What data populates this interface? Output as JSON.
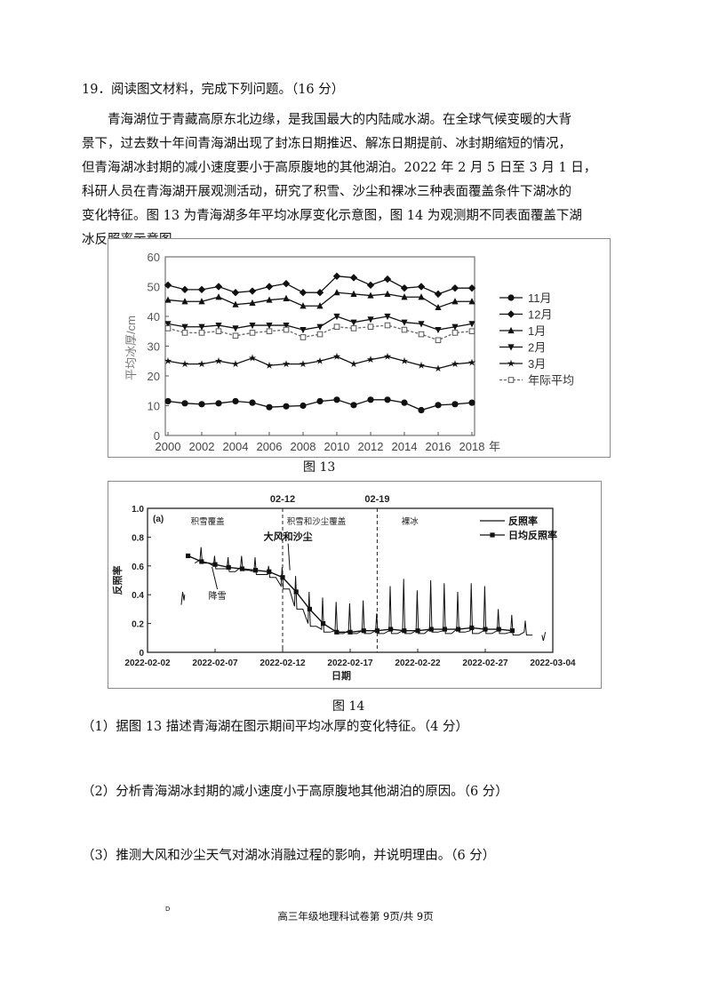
{
  "question": {
    "heading": "19．阅读图文材料，完成下列问题。（16 分）",
    "intro_lines": [
      "青海湖位于青藏高原东北边缘，是我国最大的内陆咸水湖。在全球气候变暖的大背",
      "景下，过去数十年间青海湖出现了封冻日期推迟、解冻日期提前、冰封期缩短的情况，",
      "但青海湖冰封期的减小速度要小于高原腹地的其他湖泊。2022 年 2 月 5 日至 3 月 1 日，",
      "科研人员在青海湖开展观测活动，研究了积雪、沙尘和裸冰三种表面覆盖条件下湖冰的",
      "变化特征。图 13 为青海湖多年平均冰厚变化示意图，图 14 为观测期不同表面覆盖下湖",
      "冰反照率示意图。"
    ],
    "sub_questions": [
      "（1）据图 13 描述青海湖在图示期间平均冰厚的变化特征。（4 分）",
      "（2）分析青海湖冰封期的减小速度小于高原腹地其他湖泊的原因。（6 分）",
      "（3）推测大风和沙尘天气对湖冰消融过程的影响，并说明理由。（6 分）"
    ]
  },
  "figure13": {
    "caption": "图 13"
  },
  "figure14": {
    "caption": "图 14"
  },
  "footer": {
    "text": "高三年级地理科试卷第 9页/共 9页",
    "mark": "D"
  },
  "chart_data": [
    {
      "type": "line",
      "ylabel": "平均冰厚/cm",
      "xlabel": "年",
      "ylim": [
        0,
        60
      ],
      "yticks": [
        "0",
        "10",
        "20",
        "30",
        "40",
        "50",
        "60"
      ],
      "xticks": [
        "2000",
        "2002",
        "2004",
        "2006",
        "2008",
        "2010",
        "2012",
        "2014",
        "2016",
        "2018"
      ],
      "x": [
        2000,
        2001,
        2002,
        2003,
        2004,
        2005,
        2006,
        2007,
        2008,
        2009,
        2010,
        2011,
        2012,
        2013,
        2014,
        2015,
        2016,
        2017,
        2018
      ],
      "legend_position": "right",
      "series": [
        {
          "name": "11月",
          "marker": "circle",
          "style": "solid",
          "values": [
            11.5,
            10.8,
            10.5,
            10.8,
            11.5,
            11.0,
            9.5,
            9.8,
            10.0,
            11.5,
            12.0,
            10.2,
            12.0,
            12.0,
            11.0,
            8.5,
            10.2,
            10.5,
            11.0
          ]
        },
        {
          "name": "12月",
          "marker": "diamond",
          "style": "solid",
          "values": [
            50.5,
            49.0,
            49.0,
            50.0,
            48.0,
            48.5,
            50.0,
            51.0,
            48.0,
            48.0,
            53.5,
            53.0,
            50.5,
            52.5,
            49.5,
            50.0,
            47.5,
            49.5,
            49.5
          ]
        },
        {
          "name": "1月",
          "marker": "triangle-up",
          "style": "solid",
          "values": [
            45.5,
            45.0,
            45.0,
            46.5,
            44.0,
            44.5,
            45.5,
            46.0,
            43.5,
            43.5,
            48.0,
            47.5,
            47.0,
            47.5,
            46.5,
            46.5,
            43.0,
            45.0,
            45.0
          ]
        },
        {
          "name": "2月",
          "marker": "triangle-down",
          "style": "solid",
          "values": [
            37.5,
            36.5,
            36.5,
            37.0,
            36.0,
            37.0,
            37.0,
            37.0,
            35.5,
            36.5,
            40.0,
            38.0,
            39.0,
            40.0,
            38.0,
            37.5,
            35.5,
            36.5,
            37.5
          ]
        },
        {
          "name": "3月",
          "marker": "star",
          "style": "solid",
          "values": [
            25.0,
            24.0,
            24.0,
            25.0,
            24.0,
            26.0,
            23.5,
            24.0,
            24.0,
            25.0,
            26.5,
            24.0,
            25.5,
            26.5,
            25.0,
            23.5,
            22.5,
            24.0,
            24.5
          ]
        },
        {
          "name": "年际平均",
          "marker": "open-square",
          "style": "dashed",
          "values": [
            36.0,
            34.5,
            34.5,
            35.0,
            33.5,
            34.5,
            35.0,
            35.5,
            33.0,
            34.0,
            36.5,
            36.0,
            36.5,
            37.0,
            35.5,
            34.0,
            32.0,
            34.5,
            35.0
          ]
        }
      ]
    },
    {
      "type": "line",
      "panel_label": "(a)",
      "ylabel": "反照率",
      "xlabel": "日期",
      "ylim": [
        0,
        1.0
      ],
      "yticks": [
        "0",
        "0.2",
        "0.4",
        "0.6",
        "0.8",
        "1.0"
      ],
      "xticks": [
        "2022-02-02",
        "2022-02-07",
        "2022-02-12",
        "2022-02-17",
        "2022-02-22",
        "2022-02-27",
        "2022-03-04"
      ],
      "xlim_days": [
        0,
        30
      ],
      "legend_position": "top-right",
      "periods": [
        {
          "label": "积雪覆盖",
          "from_day": 3,
          "to_day": 10
        },
        {
          "label": "积雪和沙尘覆盖",
          "from_day": 10,
          "to_day": 17
        },
        {
          "label": "裸冰",
          "from_day": 17,
          "to_day": 28
        }
      ],
      "dividers": [
        {
          "label": "02-12",
          "day": 10
        },
        {
          "label": "02-19",
          "day": 17
        }
      ],
      "annotations": [
        {
          "text": "降雪",
          "day": 5.3,
          "value": 0.42
        },
        {
          "text": "大风和沙尘",
          "day": 10.8,
          "value": 0.78
        }
      ],
      "series": [
        {
          "name": "反照率",
          "marker": "none",
          "style": "solid-diurnal",
          "peak_days": [
            4,
            5,
            6,
            7,
            8,
            9,
            10,
            11,
            12,
            13,
            14,
            15,
            16,
            17,
            18,
            19,
            20,
            21,
            22,
            23,
            24,
            25,
            26,
            27,
            28
          ],
          "peak_values": [
            0.73,
            0.67,
            0.66,
            0.67,
            0.66,
            0.6,
            0.59,
            0.53,
            0.42,
            0.38,
            0.35,
            0.34,
            0.36,
            0.27,
            0.46,
            0.51,
            0.43,
            0.5,
            0.48,
            0.42,
            0.48,
            0.46,
            0.3,
            0.26,
            0.22
          ],
          "trough_values": [
            0.62,
            0.58,
            0.56,
            0.57,
            0.54,
            0.52,
            0.44,
            0.3,
            0.18,
            0.14,
            0.13,
            0.13,
            0.13,
            0.13,
            0.13,
            0.13,
            0.13,
            0.14,
            0.13,
            0.14,
            0.13,
            0.13,
            0.13,
            0.12,
            0.12
          ]
        },
        {
          "name": "日均反照率",
          "marker": "filled-square",
          "style": "solid",
          "x_days": [
            3,
            4,
            5,
            6,
            7,
            8,
            9,
            10,
            11,
            12,
            13,
            14,
            15,
            16,
            17,
            18,
            19,
            20,
            21,
            22,
            23,
            24,
            25,
            26,
            27
          ],
          "values": [
            0.67,
            0.63,
            0.61,
            0.59,
            0.58,
            0.57,
            0.56,
            0.52,
            0.42,
            0.3,
            0.2,
            0.14,
            0.14,
            0.15,
            0.15,
            0.16,
            0.15,
            0.15,
            0.16,
            0.16,
            0.16,
            0.17,
            0.16,
            0.16,
            0.15
          ]
        }
      ]
    }
  ]
}
